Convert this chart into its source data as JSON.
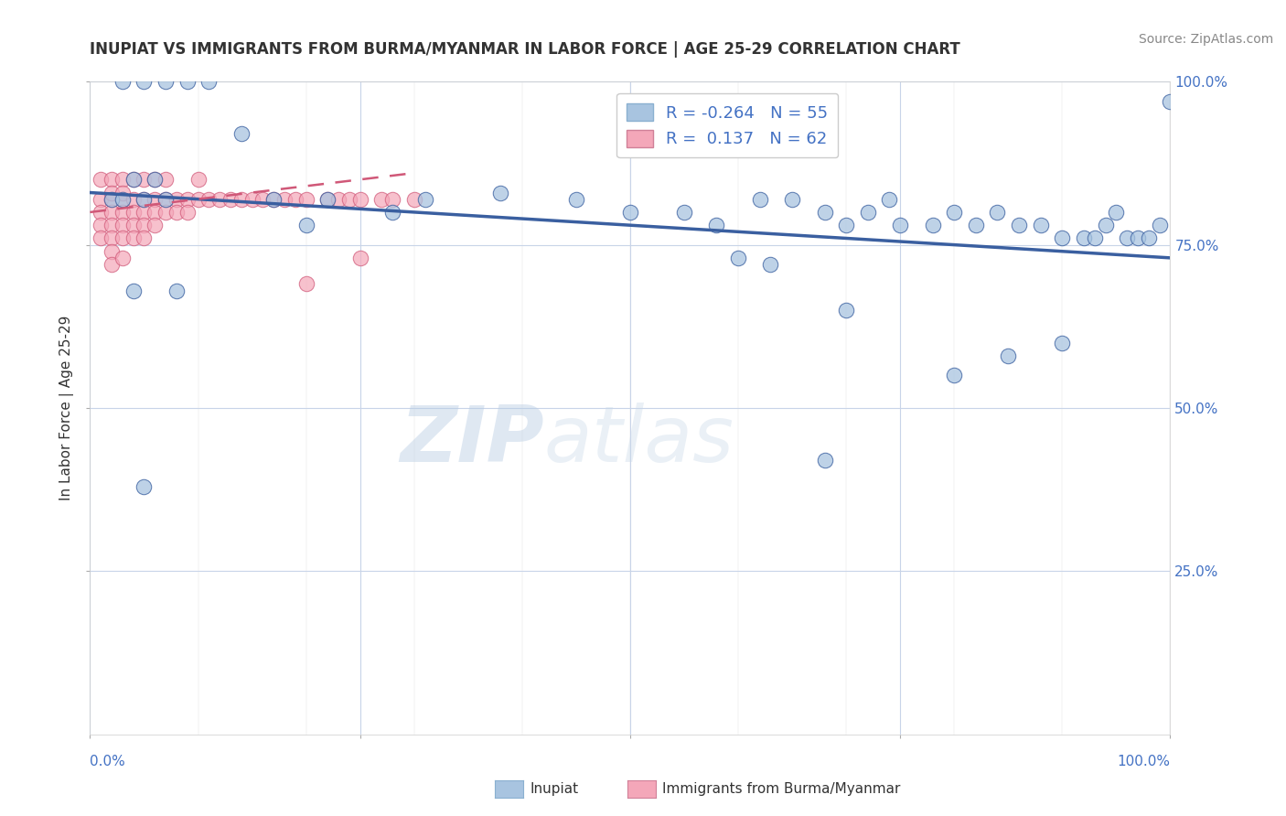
{
  "title": "INUPIAT VS IMMIGRANTS FROM BURMA/MYANMAR IN LABOR FORCE | AGE 25-29 CORRELATION CHART",
  "source": "Source: ZipAtlas.com",
  "ylabel": "In Labor Force | Age 25-29",
  "xlim": [
    0.0,
    1.0
  ],
  "ylim": [
    0.0,
    1.0
  ],
  "ytick_labels_right": [
    "100.0%",
    "75.0%",
    "50.0%",
    "25.0%"
  ],
  "ytick_values_right": [
    1.0,
    0.75,
    0.5,
    0.25
  ],
  "grid_yticks": [
    0.25,
    0.5,
    0.75,
    1.0
  ],
  "xtick_left_label": "0.0%",
  "xtick_right_label": "100.0%",
  "legend_label1": "Inupiat",
  "legend_label2": "Immigrants from Burma/Myanmar",
  "R1": -0.264,
  "N1": 55,
  "R2": 0.137,
  "N2": 62,
  "color1": "#a8c4e0",
  "color2": "#f4a7b9",
  "line_color1": "#3a5fa0",
  "line_color2": "#d05878",
  "background_color": "#ffffff",
  "grid_color": "#c8d4e8",
  "watermark_zip": "ZIP",
  "watermark_atlas": "atlas",
  "blue_scatter_x": [
    0.02,
    0.03,
    0.04,
    0.05,
    0.06,
    0.07,
    0.03,
    0.05,
    0.07,
    0.09,
    0.11,
    0.14,
    0.17,
    0.2,
    0.22,
    0.28,
    0.31,
    0.38,
    0.45,
    0.5,
    0.55,
    0.58,
    0.62,
    0.65,
    0.68,
    0.7,
    0.72,
    0.74,
    0.75,
    0.78,
    0.8,
    0.82,
    0.84,
    0.86,
    0.88,
    0.9,
    0.92,
    0.93,
    0.94,
    0.95,
    0.96,
    0.97,
    0.98,
    0.99,
    1.0,
    0.04,
    0.08,
    0.6,
    0.63,
    0.7,
    0.05,
    0.8,
    0.85,
    0.9,
    0.68
  ],
  "blue_scatter_y": [
    0.82,
    0.82,
    0.85,
    0.82,
    0.85,
    0.82,
    1.0,
    1.0,
    1.0,
    1.0,
    1.0,
    0.92,
    0.82,
    0.78,
    0.82,
    0.8,
    0.82,
    0.83,
    0.82,
    0.8,
    0.8,
    0.78,
    0.82,
    0.82,
    0.8,
    0.78,
    0.8,
    0.82,
    0.78,
    0.78,
    0.8,
    0.78,
    0.8,
    0.78,
    0.78,
    0.76,
    0.76,
    0.76,
    0.78,
    0.8,
    0.76,
    0.76,
    0.76,
    0.78,
    0.97,
    0.68,
    0.68,
    0.73,
    0.72,
    0.65,
    0.38,
    0.55,
    0.58,
    0.6,
    0.42
  ],
  "pink_scatter_x": [
    0.01,
    0.01,
    0.01,
    0.01,
    0.01,
    0.02,
    0.02,
    0.02,
    0.02,
    0.02,
    0.02,
    0.02,
    0.02,
    0.03,
    0.03,
    0.03,
    0.03,
    0.03,
    0.03,
    0.03,
    0.04,
    0.04,
    0.04,
    0.04,
    0.04,
    0.05,
    0.05,
    0.05,
    0.05,
    0.05,
    0.06,
    0.06,
    0.06,
    0.06,
    0.07,
    0.07,
    0.07,
    0.08,
    0.08,
    0.09,
    0.09,
    0.1,
    0.1,
    0.11,
    0.12,
    0.13,
    0.14,
    0.15,
    0.16,
    0.17,
    0.18,
    0.19,
    0.2,
    0.22,
    0.23,
    0.24,
    0.25,
    0.27,
    0.28,
    0.3,
    0.2,
    0.25
  ],
  "pink_scatter_y": [
    0.82,
    0.8,
    0.85,
    0.78,
    0.76,
    0.82,
    0.8,
    0.85,
    0.78,
    0.76,
    0.83,
    0.74,
    0.72,
    0.82,
    0.8,
    0.85,
    0.78,
    0.76,
    0.83,
    0.73,
    0.82,
    0.8,
    0.85,
    0.78,
    0.76,
    0.82,
    0.8,
    0.85,
    0.78,
    0.76,
    0.82,
    0.8,
    0.85,
    0.78,
    0.82,
    0.8,
    0.85,
    0.82,
    0.8,
    0.82,
    0.8,
    0.85,
    0.82,
    0.82,
    0.82,
    0.82,
    0.82,
    0.82,
    0.82,
    0.82,
    0.82,
    0.82,
    0.82,
    0.82,
    0.82,
    0.82,
    0.82,
    0.82,
    0.82,
    0.82,
    0.69,
    0.73
  ],
  "blue_line_x": [
    0.0,
    1.0
  ],
  "blue_line_y": [
    0.83,
    0.73
  ],
  "pink_line_x": [
    0.0,
    0.3
  ],
  "pink_line_y": [
    0.8,
    0.86
  ]
}
